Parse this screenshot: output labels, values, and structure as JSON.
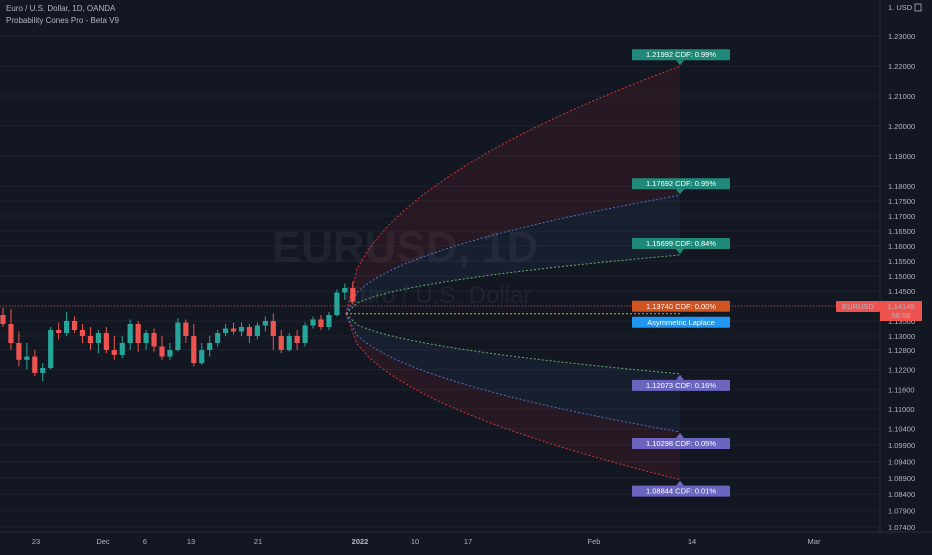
{
  "header": {
    "symbol_line": "Euro / U.S. Dollar, 1D, OANDA",
    "indicator_line": "Probability Cones Pro - Beta V9"
  },
  "watermark": {
    "line1": "EURUSD, 1D",
    "line2": "Euro / U.S. Dollar"
  },
  "price_axis": {
    "currency": "1. USD",
    "ticks": [
      "1.23000",
      "1.22000",
      "1.21000",
      "1.20000",
      "1.19000",
      "1.18000",
      "1.17500",
      "1.17000",
      "1.16500",
      "1.16000",
      "1.15500",
      "1.15000",
      "1.14500",
      "1.14000",
      "1.13500",
      "1.13000",
      "1.12800",
      "1.12200",
      "1.11600",
      "1.11000",
      "1.10400",
      "1.09900",
      "1.09400",
      "1.08900",
      "1.08400",
      "1.07900",
      "1.07400"
    ],
    "last_price_symbol": "EURUSD",
    "last_price": "1.14149",
    "countdown": "58:56"
  },
  "time_axis": {
    "labels": [
      "23",
      "Dec",
      "6",
      "13",
      "21",
      "2022",
      "10",
      "17",
      "Feb",
      "14",
      "Mar"
    ]
  },
  "colors": {
    "background": "#131722",
    "bull": "#26a69a",
    "bear": "#ef5350",
    "cdf_label_up": "#1f8a7a",
    "cdf_label_down": "#6b65c0",
    "mean_label": "#d0541f",
    "dist_label": "#2196f3",
    "cone_red": "#e53935",
    "cone_blue": "#4f7bd8",
    "cone_green": "#6fbf73",
    "cone_yellow": "#f5b400"
  },
  "chart_data": {
    "type": "candlestick",
    "title": "Euro / U.S. Dollar, 1D, OANDA",
    "series_name": "EURUSD",
    "candles": [
      {
        "o": 1.137,
        "h": 1.1395,
        "l": 1.133,
        "c": 1.134
      },
      {
        "o": 1.134,
        "h": 1.139,
        "l": 1.128,
        "c": 1.129
      },
      {
        "o": 1.129,
        "h": 1.1315,
        "l": 1.123,
        "c": 1.125
      },
      {
        "o": 1.125,
        "h": 1.129,
        "l": 1.122,
        "c": 1.126
      },
      {
        "o": 1.126,
        "h": 1.128,
        "l": 1.12,
        "c": 1.121
      },
      {
        "o": 1.121,
        "h": 1.124,
        "l": 1.1185,
        "c": 1.1225
      },
      {
        "o": 1.1225,
        "h": 1.133,
        "l": 1.122,
        "c": 1.132
      },
      {
        "o": 1.132,
        "h": 1.1345,
        "l": 1.1295,
        "c": 1.131
      },
      {
        "o": 1.131,
        "h": 1.138,
        "l": 1.13,
        "c": 1.135
      },
      {
        "o": 1.135,
        "h": 1.1365,
        "l": 1.131,
        "c": 1.132
      },
      {
        "o": 1.132,
        "h": 1.134,
        "l": 1.129,
        "c": 1.13
      },
      {
        "o": 1.13,
        "h": 1.133,
        "l": 1.128,
        "c": 1.129
      },
      {
        "o": 1.129,
        "h": 1.132,
        "l": 1.127,
        "c": 1.131
      },
      {
        "o": 1.131,
        "h": 1.133,
        "l": 1.127,
        "c": 1.128
      },
      {
        "o": 1.128,
        "h": 1.13,
        "l": 1.125,
        "c": 1.1265
      },
      {
        "o": 1.1265,
        "h": 1.13,
        "l": 1.1255,
        "c": 1.129
      },
      {
        "o": 1.129,
        "h": 1.1355,
        "l": 1.128,
        "c": 1.134
      },
      {
        "o": 1.134,
        "h": 1.135,
        "l": 1.1275,
        "c": 1.129
      },
      {
        "o": 1.129,
        "h": 1.132,
        "l": 1.128,
        "c": 1.131
      },
      {
        "o": 1.131,
        "h": 1.1325,
        "l": 1.1275,
        "c": 1.1285
      },
      {
        "o": 1.1285,
        "h": 1.13,
        "l": 1.125,
        "c": 1.126
      },
      {
        "o": 1.126,
        "h": 1.129,
        "l": 1.125,
        "c": 1.128
      },
      {
        "o": 1.128,
        "h": 1.136,
        "l": 1.1275,
        "c": 1.1345
      },
      {
        "o": 1.1345,
        "h": 1.1355,
        "l": 1.129,
        "c": 1.13
      },
      {
        "o": 1.13,
        "h": 1.134,
        "l": 1.123,
        "c": 1.124
      },
      {
        "o": 1.124,
        "h": 1.129,
        "l": 1.1235,
        "c": 1.128
      },
      {
        "o": 1.128,
        "h": 1.13,
        "l": 1.126,
        "c": 1.129
      },
      {
        "o": 1.129,
        "h": 1.132,
        "l": 1.1285,
        "c": 1.131
      },
      {
        "o": 1.131,
        "h": 1.134,
        "l": 1.13,
        "c": 1.1325
      },
      {
        "o": 1.1325,
        "h": 1.1345,
        "l": 1.1305,
        "c": 1.1315
      },
      {
        "o": 1.1315,
        "h": 1.1345,
        "l": 1.13,
        "c": 1.133
      },
      {
        "o": 1.133,
        "h": 1.134,
        "l": 1.129,
        "c": 1.13
      },
      {
        "o": 1.13,
        "h": 1.1345,
        "l": 1.1295,
        "c": 1.1335
      },
      {
        "o": 1.1335,
        "h": 1.1365,
        "l": 1.1315,
        "c": 1.135
      },
      {
        "o": 1.135,
        "h": 1.1375,
        "l": 1.128,
        "c": 1.13
      },
      {
        "o": 1.13,
        "h": 1.132,
        "l": 1.127,
        "c": 1.128
      },
      {
        "o": 1.128,
        "h": 1.131,
        "l": 1.1275,
        "c": 1.13
      },
      {
        "o": 1.13,
        "h": 1.132,
        "l": 1.128,
        "c": 1.129
      },
      {
        "o": 1.129,
        "h": 1.1345,
        "l": 1.1285,
        "c": 1.1335
      },
      {
        "o": 1.1335,
        "h": 1.1365,
        "l": 1.1325,
        "c": 1.1355
      },
      {
        "o": 1.1355,
        "h": 1.137,
        "l": 1.132,
        "c": 1.133
      },
      {
        "o": 1.133,
        "h": 1.138,
        "l": 1.132,
        "c": 1.137
      },
      {
        "o": 1.137,
        "h": 1.1455,
        "l": 1.1365,
        "c": 1.1445
      },
      {
        "o": 1.1445,
        "h": 1.1475,
        "l": 1.142,
        "c": 1.146
      },
      {
        "o": 1.146,
        "h": 1.1482,
        "l": 1.1405,
        "c": 1.1415
      }
    ],
    "cone_labels": [
      {
        "price": "1.21992",
        "cdf": "0.99%",
        "side": "up"
      },
      {
        "price": "1.17692",
        "cdf": "0.95%",
        "side": "up"
      },
      {
        "price": "1.15699",
        "cdf": "0.84%",
        "side": "up"
      },
      {
        "price": "1.13740",
        "cdf": "0.00%",
        "side": "mean"
      },
      {
        "price": "1.12073",
        "cdf": "0.16%",
        "side": "down"
      },
      {
        "price": "1.10298",
        "cdf": "0.05%",
        "side": "down"
      },
      {
        "price": "1.08844",
        "cdf": "0.01%",
        "side": "down"
      }
    ],
    "distribution_label": "Asymmetric Laplace"
  }
}
